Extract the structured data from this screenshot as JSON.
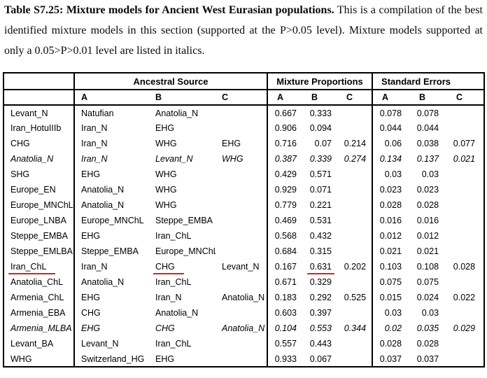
{
  "caption": {
    "title_bold": "Table S7.25: Mixture models for Ancient West Eurasian populations.",
    "body_text": "This is a compilation of the best identified mixture models in this section (supported at the P>0.05 level). Mixture models supported at only a 0.05>P>0.01 level are listed in italics."
  },
  "table": {
    "group_headers": [
      "Ancestral Source",
      "Mixture Proportions",
      "Standard Errors"
    ],
    "sub_headers": [
      "A",
      "B",
      "C"
    ],
    "accent_underline_color": "#d02420",
    "rows": [
      {
        "pop": "Levant_N",
        "sources": [
          "Natufian",
          "Anatolia_N",
          ""
        ],
        "mix": [
          "0.667",
          "0.333",
          ""
        ],
        "se": [
          "0.078",
          "0.078",
          ""
        ],
        "italic": false
      },
      {
        "pop": "Iran_HotuIIIb",
        "sources": [
          "Iran_N",
          "EHG",
          ""
        ],
        "mix": [
          "0.906",
          "0.094",
          ""
        ],
        "se": [
          "0.044",
          "0.044",
          ""
        ],
        "italic": false
      },
      {
        "pop": "CHG",
        "sources": [
          "Iran_N",
          "WHG",
          "EHG"
        ],
        "mix": [
          "0.716",
          "0.07",
          "0.214"
        ],
        "se": [
          "0.06",
          "0.038",
          "0.077"
        ],
        "italic": false
      },
      {
        "pop": "Anatolia_N",
        "sources": [
          "Iran_N",
          "Levant_N",
          "WHG"
        ],
        "mix": [
          "0.387",
          "0.339",
          "0.274"
        ],
        "se": [
          "0.134",
          "0.137",
          "0.021"
        ],
        "italic": true
      },
      {
        "pop": "SHG",
        "sources": [
          "EHG",
          "WHG",
          ""
        ],
        "mix": [
          "0.429",
          "0.571",
          ""
        ],
        "se": [
          "0.03",
          "0.03",
          ""
        ],
        "italic": false
      },
      {
        "pop": "Europe_EN",
        "sources": [
          "Anatolia_N",
          "WHG",
          ""
        ],
        "mix": [
          "0.929",
          "0.071",
          ""
        ],
        "se": [
          "0.023",
          "0.023",
          ""
        ],
        "italic": false
      },
      {
        "pop": "Europe_MNChL",
        "sources": [
          "Anatolia_N",
          "WHG",
          ""
        ],
        "mix": [
          "0.779",
          "0.221",
          ""
        ],
        "se": [
          "0.028",
          "0.028",
          ""
        ],
        "italic": false
      },
      {
        "pop": "Europe_LNBA",
        "sources": [
          "Europe_MNChL",
          "Steppe_EMBA",
          ""
        ],
        "mix": [
          "0.469",
          "0.531",
          ""
        ],
        "se": [
          "0.016",
          "0.016",
          ""
        ],
        "italic": false
      },
      {
        "pop": "Steppe_EMBA",
        "sources": [
          "EHG",
          "Iran_ChL",
          ""
        ],
        "mix": [
          "0.568",
          "0.432",
          ""
        ],
        "se": [
          "0.012",
          "0.012",
          ""
        ],
        "italic": false
      },
      {
        "pop": "Steppe_EMLBA",
        "sources": [
          "Steppe_EMBA",
          "Europe_MNChL",
          ""
        ],
        "mix": [
          "0.684",
          "0.315",
          ""
        ],
        "se": [
          "0.021",
          "0.021",
          ""
        ],
        "italic": false
      },
      {
        "pop": "Iran_ChL",
        "sources": [
          "Iran_N",
          "CHG",
          "Levant_N"
        ],
        "mix": [
          "0.167",
          "0.631",
          "0.202"
        ],
        "se": [
          "0.103",
          "0.108",
          "0.028"
        ],
        "italic": false,
        "underline": [
          "pop",
          "srcB",
          "mixB"
        ]
      },
      {
        "pop": "Anatolia_ChL",
        "sources": [
          "Anatolia_N",
          "Iran_ChL",
          ""
        ],
        "mix": [
          "0.671",
          "0.329",
          ""
        ],
        "se": [
          "0.075",
          "0.075",
          ""
        ],
        "italic": false
      },
      {
        "pop": "Armenia_ChL",
        "sources": [
          "EHG",
          "Iran_N",
          "Anatolia_N"
        ],
        "mix": [
          "0.183",
          "0.292",
          "0.525"
        ],
        "se": [
          "0.015",
          "0.024",
          "0.022"
        ],
        "italic": false
      },
      {
        "pop": "Armenia_EBA",
        "sources": [
          "CHG",
          "Anatolia_N",
          ""
        ],
        "mix": [
          "0.603",
          "0.397",
          ""
        ],
        "se": [
          "0.03",
          "0.03",
          ""
        ],
        "italic": false
      },
      {
        "pop": "Armenia_MLBA",
        "sources": [
          "EHG",
          "CHG",
          "Anatolia_N"
        ],
        "mix": [
          "0.104",
          "0.553",
          "0.344"
        ],
        "se": [
          "0.02",
          "0.035",
          "0.029"
        ],
        "italic": true
      },
      {
        "pop": "Levant_BA",
        "sources": [
          "Levant_N",
          "Iran_ChL",
          ""
        ],
        "mix": [
          "0.557",
          "0.443",
          ""
        ],
        "se": [
          "0.028",
          "0.028",
          ""
        ],
        "italic": false
      },
      {
        "pop": "WHG",
        "sources": [
          "Switzerland_HG",
          "EHG",
          ""
        ],
        "mix": [
          "0.933",
          "0.067",
          ""
        ],
        "se": [
          "0.037",
          "0.037",
          ""
        ],
        "italic": false
      }
    ]
  }
}
